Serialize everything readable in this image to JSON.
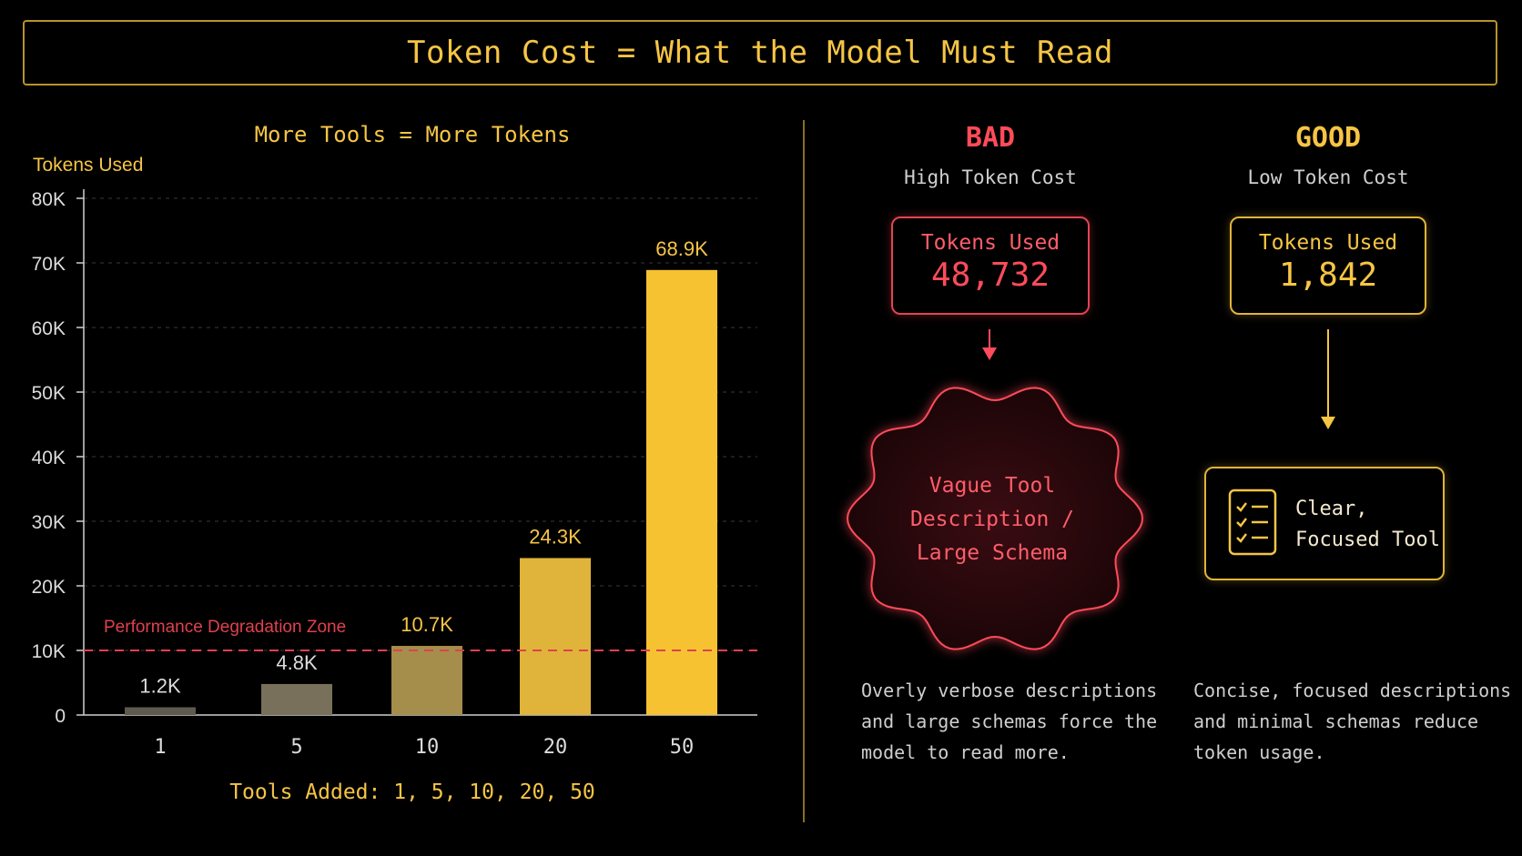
{
  "title": "Token Cost = What the Model Must Read",
  "chart_data": {
    "type": "bar",
    "title": "More Tools = More Tokens",
    "ylabel": "Tokens Used",
    "xlabel": "Tools Added: 1, 5, 10, 20, 50",
    "categories": [
      "1",
      "5",
      "10",
      "20",
      "50"
    ],
    "values": [
      1200,
      4800,
      10700,
      24300,
      68900
    ],
    "value_labels": [
      "1.2K",
      "4.8K",
      "10.7K",
      "24.3K",
      "68.9K"
    ],
    "ylim": [
      0,
      80000
    ],
    "yticks": [
      0,
      10000,
      20000,
      30000,
      40000,
      50000,
      60000,
      70000,
      80000
    ],
    "ytick_labels": [
      "0",
      "10K",
      "20K",
      "30K",
      "40K",
      "50K",
      "60K",
      "70K",
      "80K"
    ],
    "grid": true,
    "threshold": {
      "value": 10000,
      "label": "Performance Degradation Zone",
      "color": "#e0414e"
    },
    "bar_colors": [
      "#5e5a50",
      "#78705a",
      "#a58d4b",
      "#e0b43a",
      "#f7c232"
    ]
  },
  "bad": {
    "heading": "BAD",
    "subheading": "High Token Cost",
    "tokens_label": "Tokens Used",
    "tokens_value": "48,732",
    "blob_lines": [
      "Vague Tool",
      "Description /",
      "Large Schema"
    ],
    "description": "Overly verbose descriptions\nand large schemas force the\nmodel to read more.",
    "color": "#ff4b5a"
  },
  "good": {
    "heading": "GOOD",
    "subheading": "Low Token Cost",
    "tokens_label": "Tokens Used",
    "tokens_value": "1,842",
    "tool_lines": [
      "Clear,",
      "Focused Tool"
    ],
    "tool_icon": "checklist-icon",
    "description": "Concise, focused descriptions\nand minimal schemas reduce\ntoken usage.",
    "color": "#f6c544"
  }
}
